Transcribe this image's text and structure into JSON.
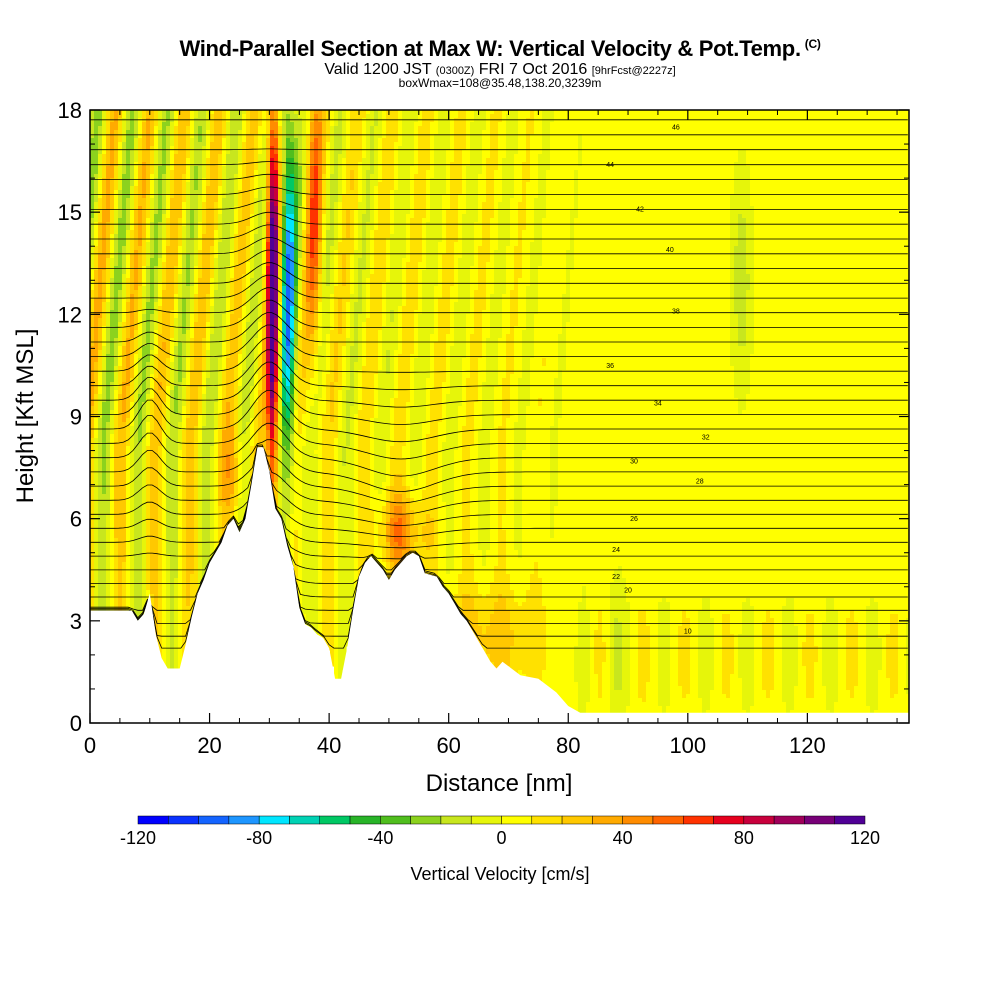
{
  "title": {
    "main": "Wind-Parallel Section at Max W: Vertical Velocity & Pot.Temp.",
    "copyright": "(C)",
    "valid_prefix": "Valid 1200 JST",
    "valid_utc": "(0300Z)",
    "valid_date": "FRI 7 Oct 2016",
    "forecast": "[9hrFcst@2227z]",
    "boxw": "boxWmax=108@35.48,138.20,3239m"
  },
  "chart_data": {
    "type": "heatmap",
    "xlabel": "Distance [nm]",
    "ylabel": "Height [Kft MSL]",
    "xlim": [
      0,
      137
    ],
    "ylim": [
      0,
      18
    ],
    "x_ticks": [
      0,
      20,
      40,
      60,
      80,
      100,
      120
    ],
    "y_ticks": [
      0,
      3,
      6,
      9,
      12,
      15,
      18
    ],
    "colorbar": {
      "label": "Vertical Velocity [cm/s]",
      "min": -120,
      "max": 120,
      "step": 10,
      "tick_values": [
        -120,
        -80,
        -40,
        0,
        40,
        80,
        120
      ],
      "tick_labels": [
        "-120",
        "-80",
        "-40",
        "0",
        "40",
        "80",
        "120"
      ],
      "colors": [
        "#0000ff",
        "#0a32ff",
        "#1464ff",
        "#1e96ff",
        "#00e6ff",
        "#00d2b4",
        "#00c864",
        "#28b428",
        "#50be1e",
        "#8cd21e",
        "#c8e61e",
        "#e6f50a",
        "#ffff00",
        "#ffe100",
        "#ffc800",
        "#ffaa00",
        "#ff8c00",
        "#ff6400",
        "#ff3200",
        "#e6001e",
        "#c8003c",
        "#a0005a",
        "#780078",
        "#500096"
      ]
    },
    "terrain": [
      [
        0,
        3.3
      ],
      [
        7,
        3.3
      ],
      [
        8,
        3.0
      ],
      [
        9,
        3.2
      ],
      [
        10,
        3.8
      ],
      [
        11,
        2.6
      ],
      [
        12,
        1.9
      ],
      [
        13,
        1.6
      ],
      [
        15,
        1.6
      ],
      [
        16,
        2.3
      ],
      [
        17,
        3.1
      ],
      [
        18,
        3.8
      ],
      [
        19,
        4.2
      ],
      [
        20,
        4.7
      ],
      [
        21,
        5.0
      ],
      [
        22,
        5.3
      ],
      [
        23,
        5.8
      ],
      [
        24,
        6.0
      ],
      [
        25,
        5.6
      ],
      [
        26,
        6.0
      ],
      [
        27,
        7.0
      ],
      [
        28,
        8.1
      ],
      [
        29,
        8.1
      ],
      [
        30,
        7.4
      ],
      [
        31,
        6.3
      ],
      [
        32,
        6.0
      ],
      [
        33,
        5.2
      ],
      [
        34,
        4.6
      ],
      [
        35,
        3.4
      ],
      [
        36,
        2.9
      ],
      [
        37,
        2.8
      ],
      [
        38,
        2.6
      ],
      [
        39,
        2.5
      ],
      [
        40,
        2.2
      ],
      [
        41,
        1.3
      ],
      [
        42,
        1.3
      ],
      [
        43,
        2.2
      ],
      [
        44,
        3.3
      ],
      [
        45,
        4.3
      ],
      [
        46,
        4.7
      ],
      [
        47,
        4.9
      ],
      [
        49,
        4.5
      ],
      [
        50,
        4.2
      ],
      [
        51,
        4.5
      ],
      [
        52,
        4.7
      ],
      [
        53,
        4.9
      ],
      [
        54,
        5.0
      ],
      [
        55,
        4.9
      ],
      [
        56,
        4.4
      ],
      [
        58,
        4.3
      ],
      [
        59,
        4.0
      ],
      [
        60,
        3.8
      ],
      [
        61,
        3.5
      ],
      [
        62,
        3.2
      ],
      [
        63,
        3.0
      ],
      [
        64,
        2.7
      ],
      [
        65,
        2.4
      ],
      [
        66,
        2.1
      ],
      [
        67,
        1.8
      ],
      [
        68,
        1.6
      ],
      [
        69,
        1.8
      ],
      [
        72,
        1.4
      ],
      [
        75,
        1.3
      ],
      [
        78,
        0.9
      ],
      [
        80,
        0.5
      ],
      [
        82,
        0.3
      ],
      [
        137,
        0.3
      ]
    ],
    "isentropes": [
      {
        "label": "10",
        "x": 100,
        "y": 2.7
      },
      {
        "label": "20",
        "x": 90,
        "y": 3.9
      },
      {
        "label": "22",
        "x": 88,
        "y": 4.3
      },
      {
        "label": "24",
        "x": 88,
        "y": 5.1
      },
      {
        "label": "26",
        "x": 91,
        "y": 6.0
      },
      {
        "label": "28",
        "x": 102,
        "y": 7.1
      },
      {
        "label": "30",
        "x": 91,
        "y": 7.7
      },
      {
        "label": "32",
        "x": 103,
        "y": 8.4
      },
      {
        "label": "34",
        "x": 95,
        "y": 9.4
      },
      {
        "label": "36",
        "x": 87,
        "y": 10.5
      },
      {
        "label": "38",
        "x": 98,
        "y": 12.1
      },
      {
        "label": "40",
        "x": 97,
        "y": 13.9
      },
      {
        "label": "42",
        "x": 92,
        "y": 15.1
      },
      {
        "label": "44",
        "x": 87,
        "y": 16.4
      },
      {
        "label": "46",
        "x": 98,
        "y": 17.5
      }
    ]
  }
}
